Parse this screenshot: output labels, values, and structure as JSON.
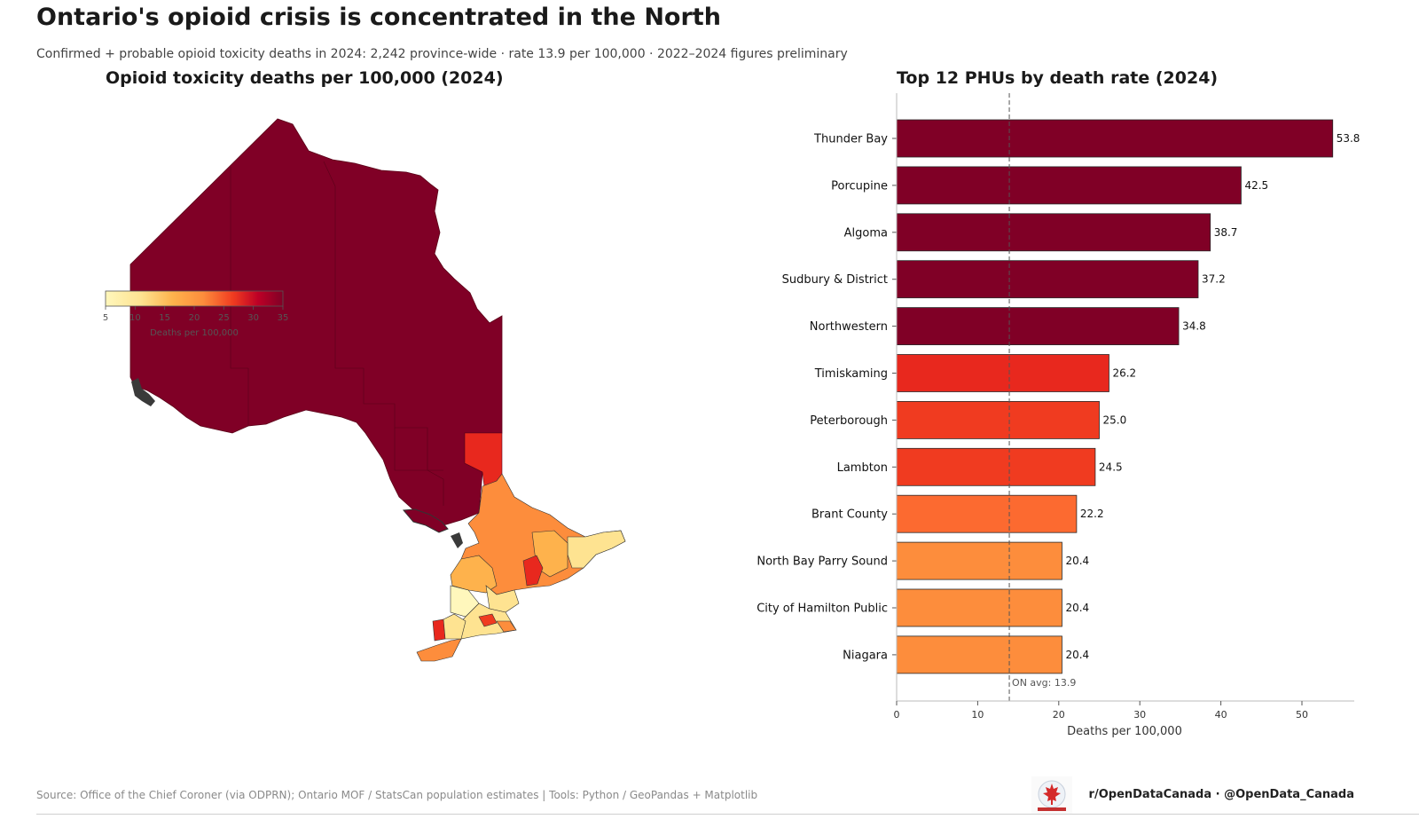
{
  "title": "Ontario's opioid crisis is concentrated in the North",
  "subtitle": "Confirmed + probable opioid toxicity deaths in 2024: 2,242 province-wide  ·  rate 13.9 per 100,000  ·  2022–2024 figures preliminary",
  "map": {
    "title": "Opioid toxicity deaths per 100,000 (2024)",
    "colorbar": {
      "ticks": [
        "5",
        "10",
        "15",
        "20",
        "25",
        "30",
        "35"
      ],
      "label": "Deaths per 100,000",
      "colors": [
        "#fff7bc",
        "#fee391",
        "#feb24c",
        "#fd8d3c",
        "#f03b20",
        "#bd0026",
        "#800026"
      ]
    }
  },
  "chart_data": {
    "type": "bar",
    "orientation": "horizontal",
    "title": "Top 12 PHUs by death rate (2024)",
    "xlabel": "Deaths per 100,000",
    "ylabel": "",
    "xlim": [
      0,
      56.5
    ],
    "xticks": [
      0,
      10,
      20,
      30,
      40,
      50
    ],
    "categories": [
      "Thunder Bay",
      "Porcupine",
      "Algoma",
      "Sudbury & District",
      "Northwestern",
      "Timiskaming",
      "Peterborough",
      "Lambton",
      "Brant County",
      "North Bay Parry Sound",
      "City of Hamilton Public ",
      "Niagara"
    ],
    "values": [
      53.8,
      42.5,
      38.7,
      37.2,
      34.8,
      26.2,
      25.0,
      24.5,
      22.2,
      20.4,
      20.4,
      20.4
    ],
    "value_labels": [
      "53.8",
      "42.5",
      "38.7",
      "37.2",
      "34.8",
      "26.2",
      "25.0",
      "24.5",
      "22.2",
      "20.4",
      "20.4",
      "20.4"
    ],
    "colors": [
      "#800026",
      "#800026",
      "#800026",
      "#800026",
      "#800026",
      "#e8281e",
      "#f03b20",
      "#f03b20",
      "#fc6a30",
      "#fd8d3c",
      "#fd8d3c",
      "#fd8d3c"
    ],
    "reference_line": {
      "value": 13.9,
      "label": "ON avg: 13.9"
    },
    "grid": false
  },
  "footer": {
    "source": "Source: Office of the Chief Coroner (via ODPRN); Ontario MOF / StatsCan population estimates  |  Tools: Python / GeoPandas + Matplotlib",
    "handles": "r/OpenDataCanada  ·  @OpenData_Canada"
  }
}
